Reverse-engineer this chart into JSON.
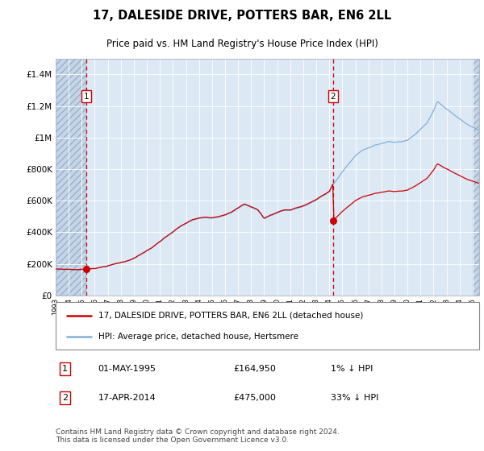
{
  "title": "17, DALESIDE DRIVE, POTTERS BAR, EN6 2LL",
  "subtitle": "Price paid vs. HM Land Registry's House Price Index (HPI)",
  "legend_line1": "17, DALESIDE DRIVE, POTTERS BAR, EN6 2LL (detached house)",
  "legend_line2": "HPI: Average price, detached house, Hertsmere",
  "annotation1_label": "1",
  "annotation1_date": "01-MAY-1995",
  "annotation1_price": 164950,
  "annotation1_hpi_rel": "1% ↓ HPI",
  "annotation2_label": "2",
  "annotation2_date": "17-APR-2014",
  "annotation2_price": 475000,
  "annotation2_hpi_rel": "33% ↓ HPI",
  "footer": "Contains HM Land Registry data © Crown copyright and database right 2024.\nThis data is licensed under the Open Government Licence v3.0.",
  "bg_color": "#dde8f5",
  "hatch_color": "#c5d5e8",
  "line_red": "#cc0000",
  "line_blue": "#82b0d8",
  "dot_color": "#cc0000",
  "dashed_line_color": "#cc0000",
  "annotation_box_color": "#cc0000",
  "grid_color": "#ffffff",
  "border_color": "#b0b8c8",
  "ylim": [
    0,
    1500000
  ],
  "yticks": [
    0,
    200000,
    400000,
    600000,
    800000,
    1000000,
    1200000,
    1400000
  ],
  "xlim_start": 1993.0,
  "xlim_end": 2025.5,
  "sale1_year": 1995.33,
  "sale2_year": 2014.29,
  "sale1_price": 164950,
  "sale2_price": 475000
}
